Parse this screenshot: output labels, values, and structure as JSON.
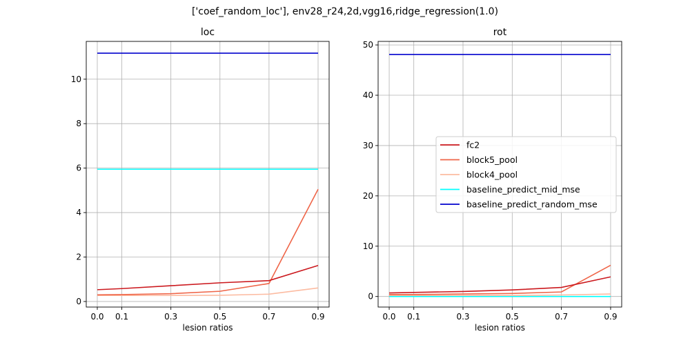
{
  "figure_title": "['coef_random_loc'], env28_r24,2d,vgg16,ridge_regression(1.0)",
  "colors": {
    "fc2": "#cb181d",
    "block5_pool": "#ef6548",
    "block4_pool": "#fcbba1",
    "baseline_predict_mid_mse": "#00ffff",
    "baseline_predict_random_mse": "#0000cd",
    "grid": "#b0b0b0"
  },
  "chart_data": [
    {
      "type": "line",
      "title": "loc",
      "xlabel": "lesion ratios",
      "ylabel": "",
      "x": [
        0.0,
        0.1,
        0.3,
        0.5,
        0.7,
        0.9
      ],
      "xticks": [
        "0.0",
        "0.1",
        "0.3",
        "0.5",
        "0.7",
        "0.9"
      ],
      "yticks": [
        "0",
        "2",
        "4",
        "6",
        "8",
        "10"
      ],
      "ylim": [
        -0.25,
        11.7
      ],
      "xlim": [
        -0.045,
        0.945
      ],
      "grid": true,
      "series": [
        {
          "name": "fc2",
          "values": [
            0.53,
            0.58,
            0.71,
            0.84,
            0.94,
            1.62
          ]
        },
        {
          "name": "block5_pool",
          "values": [
            0.3,
            0.31,
            0.35,
            0.46,
            0.81,
            5.05
          ]
        },
        {
          "name": "block4_pool",
          "values": [
            0.27,
            0.27,
            0.27,
            0.28,
            0.33,
            0.61
          ]
        },
        {
          "name": "baseline_predict_mid_mse",
          "values": [
            5.95,
            5.95,
            5.95,
            5.95,
            5.95,
            5.95
          ]
        },
        {
          "name": "baseline_predict_random_mse",
          "values": [
            11.17,
            11.17,
            11.17,
            11.17,
            11.17,
            11.17
          ]
        }
      ]
    },
    {
      "type": "line",
      "title": "rot",
      "xlabel": "lesion ratios",
      "ylabel": "",
      "x": [
        0.0,
        0.1,
        0.3,
        0.5,
        0.7,
        0.9
      ],
      "xticks": [
        "0.0",
        "0.1",
        "0.3",
        "0.5",
        "0.7",
        "0.9"
      ],
      "yticks": [
        "0",
        "10",
        "20",
        "30",
        "40",
        "50"
      ],
      "ylim": [
        -2.1,
        50.7
      ],
      "xlim": [
        -0.045,
        0.945
      ],
      "grid": true,
      "legend": "center-right",
      "series": [
        {
          "name": "fc2",
          "values": [
            0.7,
            0.8,
            1.0,
            1.3,
            1.8,
            3.9
          ]
        },
        {
          "name": "block5_pool",
          "values": [
            0.4,
            0.4,
            0.5,
            0.6,
            0.9,
            6.2
          ]
        },
        {
          "name": "block4_pool",
          "values": [
            0.2,
            0.2,
            0.2,
            0.2,
            0.3,
            0.5
          ]
        },
        {
          "name": "baseline_predict_mid_mse",
          "values": [
            0.0,
            0.0,
            0.0,
            0.0,
            0.0,
            0.0
          ]
        },
        {
          "name": "baseline_predict_random_mse",
          "values": [
            48.1,
            48.1,
            48.1,
            48.1,
            48.1,
            48.1
          ]
        }
      ]
    }
  ]
}
